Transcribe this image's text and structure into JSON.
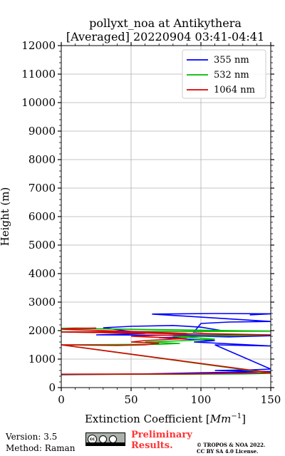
{
  "chart_data": {
    "type": "line",
    "title": "pollyxt_noa at Antikythera",
    "subtitle": "[Averaged] 20220904 03:41-04:41",
    "xlabel": "Extinction Coefficient [",
    "xlabel_unit": "Mm",
    "xlabel_exp": "−1",
    "xlabel_close": "]",
    "ylabel": "Height (m)",
    "xlim": [
      0,
      150
    ],
    "ylim": [
      0,
      12000
    ],
    "x_ticks": [
      0,
      50,
      100,
      150
    ],
    "y_ticks": [
      0,
      1000,
      2000,
      3000,
      4000,
      5000,
      6000,
      7000,
      8000,
      9000,
      10000,
      11000,
      12000
    ],
    "grid": true,
    "legend_placement": "top-right",
    "series": [
      {
        "name": "355 nm",
        "color": "#0000ff",
        "points": [
          [
            0,
            450
          ],
          [
            60,
            480
          ],
          [
            100,
            520
          ],
          [
            150,
            560
          ],
          [
            110,
            600
          ],
          [
            135,
            620
          ],
          [
            150,
            650
          ],
          [
            110,
            1500
          ],
          [
            150,
            1460
          ],
          [
            95,
            1600
          ],
          [
            110,
            1650
          ],
          [
            70,
            1750
          ],
          [
            100,
            1800
          ],
          [
            120,
            1780
          ],
          [
            150,
            1820
          ],
          [
            25,
            1850
          ],
          [
            60,
            1900
          ],
          [
            30,
            2100
          ],
          [
            50,
            2150
          ],
          [
            80,
            2180
          ],
          [
            100,
            2120
          ],
          [
            115,
            2000
          ],
          [
            95,
            1950
          ],
          [
            100,
            2250
          ],
          [
            120,
            2300
          ],
          [
            150,
            2320
          ],
          [
            65,
            2580
          ],
          [
            110,
            2600
          ],
          [
            150,
            2590
          ],
          [
            135,
            2550
          ]
        ]
      },
      {
        "name": "532 nm",
        "color": "#00bb00",
        "points": [
          [
            0,
            460
          ],
          [
            80,
            470
          ],
          [
            130,
            480
          ],
          [
            150,
            500
          ],
          [
            0,
            1500
          ],
          [
            40,
            1510
          ],
          [
            70,
            1520
          ],
          [
            85,
            1550
          ],
          [
            60,
            1600
          ],
          [
            90,
            1650
          ],
          [
            110,
            1700
          ],
          [
            80,
            1800
          ],
          [
            120,
            1820
          ],
          [
            150,
            1850
          ],
          [
            0,
            1950
          ],
          [
            50,
            1960
          ],
          [
            100,
            1970
          ],
          [
            150,
            1980
          ],
          [
            0,
            2080
          ],
          [
            10,
            2090
          ],
          [
            20,
            2080
          ]
        ]
      },
      {
        "name": "1064 nm",
        "color": "#dd0000",
        "points": [
          [
            0,
            470
          ],
          [
            90,
            480
          ],
          [
            150,
            520
          ],
          [
            0,
            1500
          ],
          [
            40,
            1480
          ],
          [
            60,
            1500
          ],
          [
            70,
            1550
          ],
          [
            50,
            1600
          ],
          [
            60,
            1650
          ],
          [
            80,
            1700
          ],
          [
            90,
            1720
          ],
          [
            50,
            1800
          ],
          [
            80,
            1850
          ],
          [
            100,
            1900
          ],
          [
            150,
            1850
          ],
          [
            0,
            1950
          ],
          [
            40,
            1960
          ],
          [
            90,
            1900
          ],
          [
            0,
            2050
          ],
          [
            10,
            2080
          ],
          [
            25,
            2090
          ]
        ]
      }
    ]
  },
  "footer": {
    "version": "Version: 3.5",
    "method": "Method: Raman",
    "cc_label": "cc",
    "preliminary_line1": "Preliminary",
    "preliminary_line2": "Results.",
    "copyright_line1": "© TROPOS & NOA 2022.",
    "copyright_line2": "CC BY SA 4.0 License."
  }
}
